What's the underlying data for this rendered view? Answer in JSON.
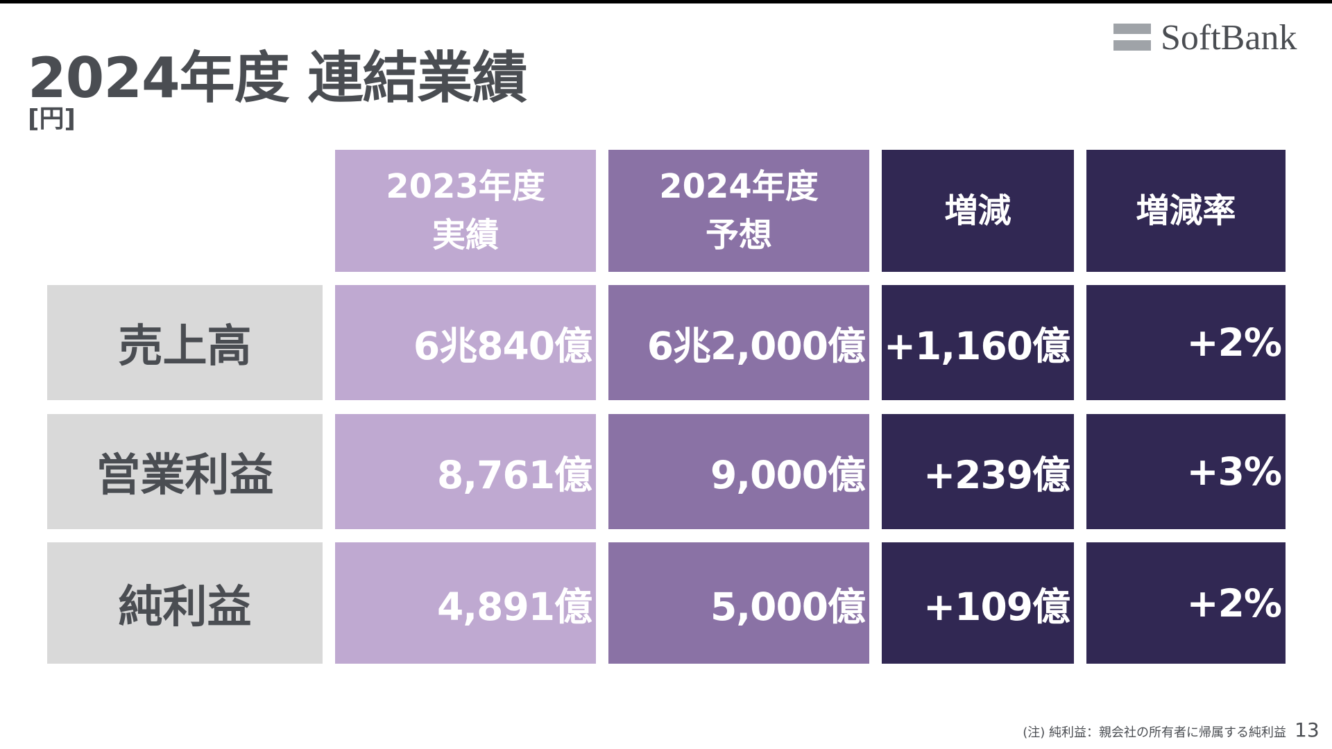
{
  "title": "2024年度 連結業績",
  "unit": "[円]",
  "logo_text": "SoftBank",
  "columns": [
    {
      "line1": "2023年度",
      "line2": "実績"
    },
    {
      "line1": "2024年度",
      "line2": "予想"
    },
    {
      "line1": "増減",
      "line2": ""
    },
    {
      "line1": "増減率",
      "line2": ""
    }
  ],
  "rows": [
    {
      "label": "売上高",
      "values": [
        "6兆840億",
        "6兆2,000億",
        "+1,160億",
        "+2%"
      ]
    },
    {
      "label": "営業利益",
      "values": [
        "8,761億",
        "9,000億",
        "+239億",
        "+3%"
      ]
    },
    {
      "label": "純利益",
      "values": [
        "4,891億",
        "5,000億",
        "+109億",
        "+2%"
      ]
    }
  ],
  "footnote": "(注) 純利益：親会社の所有者に帰属する純利益",
  "page_number": "13",
  "colors": {
    "col_2023": "#bfa9d1",
    "col_2024": "#8a72a5",
    "col_change": "#312853",
    "row_label_bg": "#d9d9d9",
    "text_gray": "#4a4d52"
  }
}
